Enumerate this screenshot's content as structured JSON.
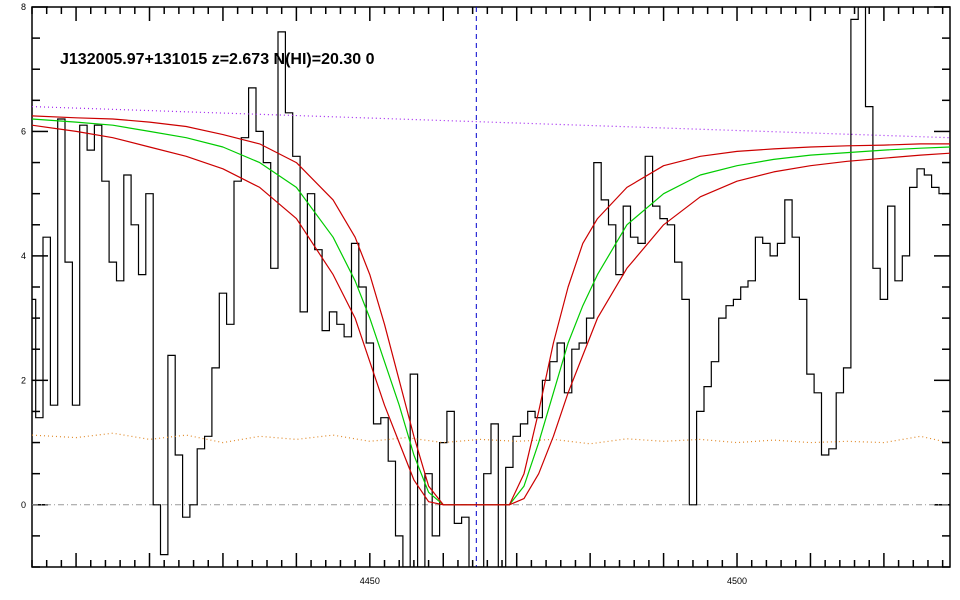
{
  "chart_data": {
    "type": "line",
    "title": "J132005.97+131015 z=2.673 N(HI)=20.30 0",
    "xlabel": "",
    "ylabel": "",
    "xlim": [
      4404,
      4529
    ],
    "ylim": [
      -1.0,
      8.0
    ],
    "x_ticks": [
      4450,
      4500
    ],
    "y_ticks": [
      0,
      2,
      4,
      6,
      8
    ],
    "grid": false,
    "line_center": 4464.5,
    "series": [
      {
        "role": "flux",
        "color": "#000000",
        "style": "steps",
        "x": [
          4404,
          4405,
          4406,
          4407,
          4408,
          4409,
          4410,
          4411,
          4412,
          4413,
          4414,
          4415,
          4416,
          4417,
          4418,
          4419,
          4420,
          4421,
          4422,
          4423,
          4424,
          4425,
          4426,
          4427,
          4428,
          4429,
          4430,
          4431,
          4432,
          4433,
          4434,
          4435,
          4436,
          4437,
          4438,
          4439,
          4440,
          4441,
          4442,
          4443,
          4444,
          4445,
          4446,
          4447,
          4448,
          4449,
          4450,
          4451,
          4452,
          4453,
          4454,
          4455,
          4456,
          4457,
          4458,
          4459,
          4460,
          4461,
          4462,
          4463,
          4464,
          4465,
          4466,
          4467,
          4468,
          4469,
          4470,
          4471,
          4472,
          4473,
          4474,
          4475,
          4476,
          4477,
          4478,
          4479,
          4480,
          4481,
          4482,
          4483,
          4484,
          4485,
          4486,
          4487,
          4488,
          4489,
          4490,
          4491,
          4492,
          4493,
          4494,
          4495,
          4496,
          4497,
          4498,
          4499,
          4500,
          4501,
          4502,
          4503,
          4504,
          4505,
          4506,
          4507,
          4508,
          4509,
          4510,
          4511,
          4512,
          4513,
          4514,
          4515,
          4516,
          4517,
          4518,
          4519,
          4520,
          4521,
          4522,
          4523,
          4524,
          4525,
          4526,
          4527,
          4528
        ],
        "values": [
          3.3,
          1.4,
          4.3,
          1.6,
          6.2,
          3.9,
          1.6,
          6.1,
          5.7,
          6.1,
          5.2,
          3.9,
          3.6,
          5.3,
          4.5,
          3.7,
          5.0,
          0.0,
          -0.8,
          2.4,
          0.8,
          -0.2,
          0.0,
          0.9,
          1.1,
          2.2,
          3.4,
          2.9,
          5.2,
          5.9,
          6.7,
          6.0,
          5.5,
          3.8,
          7.6,
          6.3,
          5.6,
          3.1,
          5.0,
          4.1,
          2.8,
          3.1,
          2.9,
          2.7,
          4.2,
          3.5,
          2.6,
          1.3,
          1.4,
          0.7,
          -0.5,
          -1.0,
          2.1,
          -1.0,
          0.5,
          -0.5,
          1.0,
          1.5,
          -0.3,
          -0.2,
          -1.0,
          -1.0,
          0.5,
          1.3,
          -1.0,
          0.6,
          1.1,
          1.3,
          1.5,
          1.4,
          2.0,
          2.3,
          2.6,
          1.8,
          2.5,
          2.6,
          3.0,
          5.5,
          4.9,
          4.5,
          3.7,
          4.8,
          4.3,
          4.2,
          5.6,
          4.8,
          4.6,
          4.5,
          3.9,
          3.3,
          0.0,
          1.5,
          1.9,
          2.3,
          3.0,
          3.2,
          3.3,
          3.5,
          3.6,
          4.3,
          4.2,
          4.0,
          4.2,
          4.9,
          4.3,
          3.3,
          2.1,
          1.8,
          0.8,
          0.9,
          1.8,
          2.2,
          7.8,
          8.0,
          6.4,
          3.8,
          3.3,
          4.8,
          3.6,
          4.0,
          5.1,
          5.4,
          5.3,
          5.1,
          5.0
        ]
      },
      {
        "role": "error",
        "color": "#e08a2a",
        "style": "dotted",
        "x": [
          4404,
          4410,
          4415,
          4420,
          4425,
          4430,
          4435,
          4440,
          4445,
          4450,
          4455,
          4460,
          4465,
          4470,
          4475,
          4480,
          4485,
          4490,
          4495,
          4500,
          4505,
          4510,
          4515,
          4520,
          4525,
          4528
        ],
        "values": [
          1.12,
          1.08,
          1.15,
          1.05,
          1.12,
          1.0,
          1.1,
          1.05,
          1.12,
          1.02,
          1.08,
          1.0,
          1.05,
          1.02,
          1.05,
          0.98,
          1.06,
          1.02,
          1.05,
          1.0,
          1.04,
          1.0,
          1.02,
          1.0,
          1.1,
          1.02
        ]
      },
      {
        "role": "continuum",
        "color": "#a020f0",
        "style": "dotted",
        "x": [
          4404,
          4529
        ],
        "values": [
          6.4,
          5.9
        ]
      },
      {
        "role": "model",
        "color": "#00cc00",
        "style": "solid",
        "x": [
          4404,
          4410,
          4415,
          4420,
          4425,
          4430,
          4435,
          4440,
          4445,
          4448,
          4450,
          4452,
          4454,
          4456,
          4458,
          4460,
          4462,
          4464,
          4467,
          4469,
          4471,
          4473,
          4475,
          4477,
          4479,
          4481,
          4485,
          4490,
          4495,
          4500,
          4505,
          4510,
          4515,
          4520,
          4525,
          4529
        ],
        "values": [
          6.2,
          6.15,
          6.1,
          6.0,
          5.9,
          5.75,
          5.5,
          5.1,
          4.3,
          3.6,
          3.0,
          2.3,
          1.6,
          0.8,
          0.2,
          0.0,
          0.0,
          0.0,
          0.0,
          0.0,
          0.3,
          1.0,
          1.8,
          2.6,
          3.2,
          3.7,
          4.5,
          5.0,
          5.3,
          5.45,
          5.55,
          5.62,
          5.66,
          5.7,
          5.73,
          5.75
        ]
      },
      {
        "role": "model-upper",
        "color": "#cc0000",
        "style": "solid",
        "x": [
          4404,
          4410,
          4415,
          4420,
          4425,
          4430,
          4435,
          4440,
          4445,
          4448,
          4450,
          4452,
          4454,
          4456,
          4458,
          4460,
          4462,
          4464,
          4467,
          4469,
          4471,
          4473,
          4475,
          4477,
          4479,
          4481,
          4485,
          4490,
          4495,
          4500,
          4505,
          4510,
          4515,
          4520,
          4525,
          4529
        ],
        "values": [
          6.25,
          6.22,
          6.2,
          6.15,
          6.08,
          5.95,
          5.8,
          5.5,
          4.9,
          4.3,
          3.7,
          2.9,
          2.0,
          1.1,
          0.3,
          0.0,
          0.0,
          0.0,
          0.0,
          0.0,
          0.5,
          1.5,
          2.6,
          3.5,
          4.2,
          4.6,
          5.1,
          5.45,
          5.6,
          5.68,
          5.72,
          5.75,
          5.77,
          5.78,
          5.8,
          5.8
        ]
      },
      {
        "role": "model-lower",
        "color": "#cc0000",
        "style": "solid",
        "x": [
          4404,
          4410,
          4415,
          4420,
          4425,
          4430,
          4435,
          4440,
          4445,
          4448,
          4450,
          4452,
          4454,
          4456,
          4458,
          4460,
          4462,
          4464,
          4467,
          4469,
          4471,
          4473,
          4475,
          4477,
          4479,
          4481,
          4485,
          4490,
          4495,
          4500,
          4505,
          4510,
          4515,
          4520,
          4525,
          4529
        ],
        "values": [
          6.1,
          6.0,
          5.9,
          5.75,
          5.6,
          5.4,
          5.1,
          4.6,
          3.7,
          3.0,
          2.3,
          1.6,
          1.0,
          0.4,
          0.05,
          0.0,
          0.0,
          0.0,
          0.0,
          0.0,
          0.1,
          0.5,
          1.1,
          1.8,
          2.4,
          3.0,
          3.8,
          4.5,
          4.95,
          5.2,
          5.35,
          5.45,
          5.52,
          5.57,
          5.62,
          5.65
        ]
      }
    ]
  }
}
